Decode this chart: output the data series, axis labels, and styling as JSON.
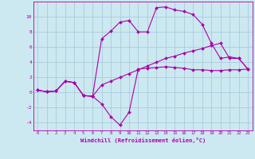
{
  "background_color": "#cce8f0",
  "grid_color": "#aaccdd",
  "line_color": "#aa00aa",
  "marker_color": "#aa00aa",
  "xlabel": "Windchill (Refroidissement éolien,°C)",
  "xlim": [
    -0.5,
    23.5
  ],
  "ylim": [
    -5,
    12
  ],
  "yticks": [
    -4,
    -2,
    0,
    2,
    4,
    6,
    8,
    10
  ],
  "xticks": [
    0,
    1,
    2,
    3,
    4,
    5,
    6,
    7,
    8,
    9,
    10,
    11,
    12,
    13,
    14,
    15,
    16,
    17,
    18,
    19,
    20,
    21,
    22,
    23
  ],
  "series": [
    {
      "x": [
        0,
        1,
        2,
        3,
        4,
        5,
        6,
        7,
        8,
        9,
        10,
        11,
        12,
        13,
        14,
        15,
        16,
        17,
        18,
        19,
        20,
        21,
        22,
        23
      ],
      "y": [
        0.3,
        0.1,
        0.2,
        1.5,
        1.3,
        -0.4,
        -0.5,
        -1.5,
        -3.2,
        -4.3,
        -2.6,
        3.1,
        3.2,
        3.3,
        3.4,
        3.3,
        3.2,
        3.0,
        3.0,
        2.9,
        2.9,
        3.0,
        3.0,
        3.1
      ]
    },
    {
      "x": [
        0,
        1,
        2,
        3,
        4,
        5,
        6,
        7,
        8,
        9,
        10,
        11,
        12,
        13,
        14,
        15,
        16,
        17,
        18,
        19,
        20,
        21,
        22,
        23
      ],
      "y": [
        0.3,
        0.1,
        0.2,
        1.5,
        1.3,
        -0.4,
        -0.5,
        7.1,
        8.1,
        9.3,
        9.5,
        8.0,
        8.0,
        11.2,
        11.3,
        10.9,
        10.7,
        10.3,
        9.0,
        6.5,
        4.5,
        4.7,
        4.5,
        3.1
      ]
    },
    {
      "x": [
        0,
        1,
        2,
        3,
        4,
        5,
        6,
        7,
        8,
        9,
        10,
        11,
        12,
        13,
        14,
        15,
        16,
        17,
        18,
        19,
        20,
        21,
        22,
        23
      ],
      "y": [
        0.3,
        0.1,
        0.2,
        1.5,
        1.3,
        -0.4,
        -0.5,
        1.0,
        1.5,
        2.0,
        2.5,
        3.0,
        3.5,
        4.0,
        4.5,
        4.8,
        5.2,
        5.5,
        5.8,
        6.2,
        6.5,
        4.5,
        4.5,
        3.1
      ]
    }
  ]
}
